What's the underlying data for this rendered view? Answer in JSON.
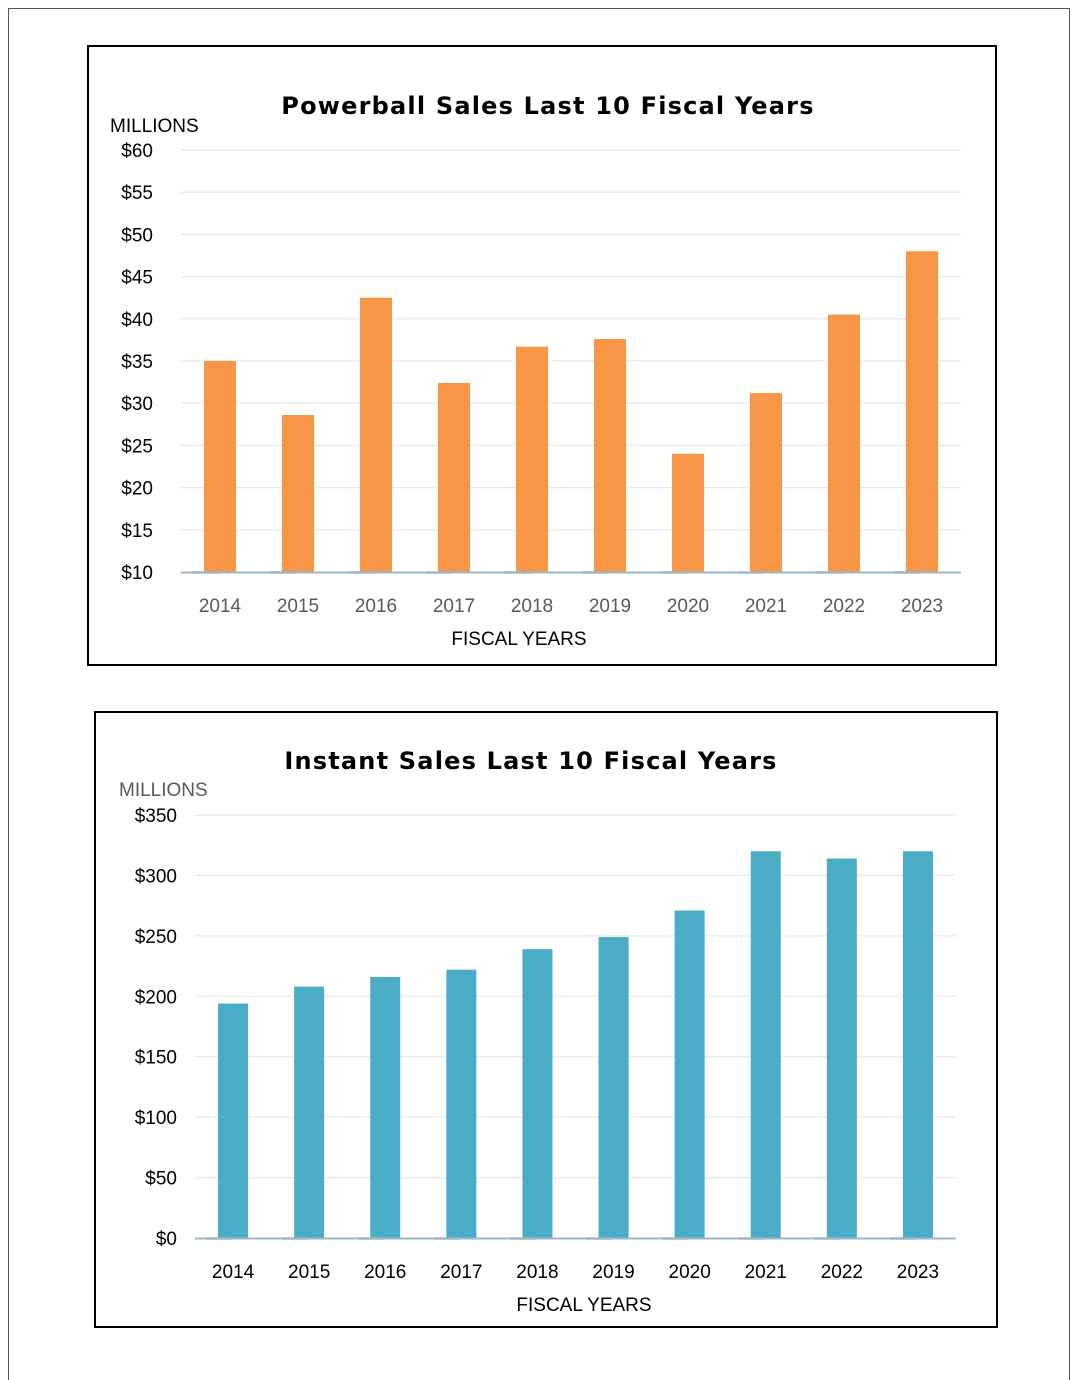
{
  "chart_data": [
    {
      "type": "bar",
      "title": "Powerball Sales Last 10 Fiscal Years",
      "ylabel": "MILLIONS",
      "xlabel": "FISCAL YEARS",
      "categories": [
        "2014",
        "2015",
        "2016",
        "2017",
        "2018",
        "2019",
        "2020",
        "2021",
        "2022",
        "2023"
      ],
      "values": [
        35.0,
        28.6,
        42.5,
        32.4,
        36.7,
        37.6,
        24.0,
        31.2,
        40.5,
        48.0
      ],
      "ylim": [
        10,
        60
      ],
      "yticks": [
        10,
        15,
        20,
        25,
        30,
        35,
        40,
        45,
        50,
        55,
        60
      ],
      "ytick_labels": [
        "$10",
        "$15",
        "$20",
        "$25",
        "$30",
        "$35",
        "$40",
        "$45",
        "$50",
        "$55",
        "$60"
      ],
      "grid": true,
      "legend": "none",
      "colors": {
        "bar": "#F79646",
        "axis": "#9DB8C4",
        "grid": "#E8E8E8",
        "xtick": "#595959",
        "unit": "#000000"
      }
    },
    {
      "type": "bar",
      "title": "Instant Sales Last 10 Fiscal Years",
      "ylabel": "MILLIONS",
      "xlabel": "FISCAL YEARS",
      "categories": [
        "2014",
        "2015",
        "2016",
        "2017",
        "2018",
        "2019",
        "2020",
        "2021",
        "2022",
        "2023"
      ],
      "values": [
        194,
        208,
        216,
        222,
        239,
        249,
        271,
        320,
        314,
        320
      ],
      "ylim": [
        0,
        350
      ],
      "yticks": [
        0,
        50,
        100,
        150,
        200,
        250,
        300,
        350
      ],
      "ytick_labels": [
        "$0",
        "$50",
        "$100",
        "$150",
        "$200",
        "$250",
        "$300",
        "$350"
      ],
      "grid": true,
      "legend": "none",
      "colors": {
        "bar": "#4BACC6",
        "axis": "#9DB8C4",
        "grid": "#E8E8E8",
        "xtick": "#000000",
        "unit": "#595959"
      }
    }
  ]
}
